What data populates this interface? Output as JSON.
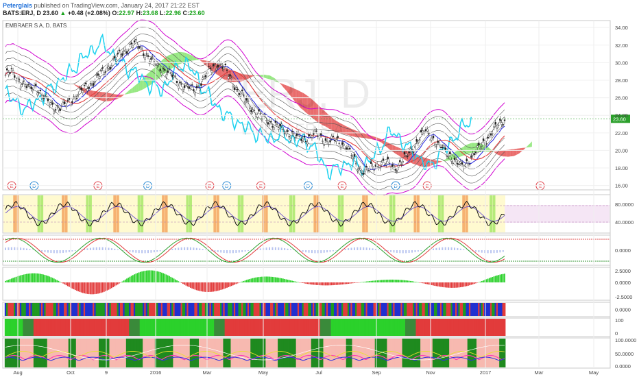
{
  "header": {
    "username": "Peterglais",
    "published_text": "published on TradingView.com, January 24, 2017 21:22 EST",
    "symbol": "BATS:ERJ, D",
    "last": "23.60",
    "change": "+0.48 (+2.08%)",
    "open_label": "O:",
    "open": "22.97",
    "high_label": "H:",
    "high": "23.68",
    "low_label": "L:",
    "low": "22.96",
    "close_label": "C:",
    "close": "23.60"
  },
  "chart_data": {
    "type": "line",
    "title": "EMBRAER S A, D, BATS",
    "watermark": "ERJ, D",
    "watermark_sub": "EMBRAER S A",
    "x_tick_labels": [
      "Aug",
      "Oct",
      "9",
      "2016",
      "Mar",
      "May",
      "Jul",
      "Sep",
      "Nov",
      "2017",
      "Mar",
      "May"
    ],
    "price_axis": {
      "ticks": [
        "34.00",
        "32.00",
        "30.00",
        "28.00",
        "26.00",
        "24.00",
        "22.00",
        "20.00",
        "18.00",
        "16.00"
      ],
      "ylim": [
        15.5,
        34.8
      ]
    },
    "last_price_label": "23.60",
    "close_series": [
      28.6,
      28.9,
      28.2,
      27.5,
      27.0,
      27.4,
      26.2,
      25.6,
      25.0,
      24.8,
      25.3,
      25.9,
      26.4,
      27.1,
      27.6,
      28.2,
      28.9,
      29.6,
      30.4,
      31.0,
      31.6,
      32.2,
      31.8,
      31.0,
      30.2,
      29.6,
      29.2,
      28.8,
      28.0,
      27.5,
      27.2,
      26.8,
      27.6,
      28.6,
      29.5,
      30.0,
      29.3,
      28.2,
      27.0,
      26.1,
      25.2,
      24.4,
      23.8,
      23.5,
      23.0,
      22.6,
      22.2,
      21.8,
      21.5,
      21.3,
      21.6,
      21.9,
      21.4,
      21.0,
      21.2,
      20.9,
      20.5,
      19.2,
      18.0,
      17.6,
      17.9,
      18.3,
      18.6,
      18.4,
      18.0,
      18.6,
      19.4,
      20.3,
      21.4,
      22.2,
      21.6,
      20.6,
      20.1,
      19.5,
      18.6,
      18.1,
      18.8,
      19.6,
      20.4,
      21.3,
      22.1,
      22.9,
      23.6
    ],
    "events": [
      {
        "type": "E",
        "x": 0.008
      },
      {
        "type": "D",
        "x": 0.045
      },
      {
        "type": "E",
        "x": 0.15
      },
      {
        "type": "D",
        "x": 0.232
      },
      {
        "type": "E",
        "x": 0.334
      },
      {
        "type": "D",
        "x": 0.362
      },
      {
        "type": "E",
        "x": 0.418
      },
      {
        "type": "D",
        "x": 0.496
      },
      {
        "type": "E",
        "x": 0.552
      },
      {
        "type": "D",
        "x": 0.64
      },
      {
        "type": "E",
        "x": 0.692
      },
      {
        "type": "E",
        "x": 0.878
      }
    ],
    "rsi_axis": {
      "ticks": [
        "80.0000",
        "40.0000"
      ]
    },
    "stoch_axis": {
      "ticks": [
        "0.0000"
      ]
    },
    "macd_axis": {
      "ticks": [
        "2.5000",
        "0.0000",
        "-2.5000"
      ]
    },
    "trend1_axis": {
      "ticks": [
        "0.0000"
      ]
    },
    "trend2_axis": {
      "ticks": [
        "100",
        "0"
      ]
    },
    "dmi_axis": {
      "ticks": [
        "100.0000",
        "50.0000",
        "0.0000"
      ]
    },
    "colors": {
      "up": "#2bd12b",
      "down": "#e23b3b",
      "candle_up": "#2a2a2a",
      "band_outer": "#d000d0",
      "cyan": "#22d3f0",
      "blue": "#3030e0",
      "red_cloud": "#e23b3b",
      "green_cloud": "#74e05a",
      "rsi_bg": "#fffad0",
      "pink_bg": "#f7b9b0",
      "dark_green": "#1f8a1f"
    }
  }
}
